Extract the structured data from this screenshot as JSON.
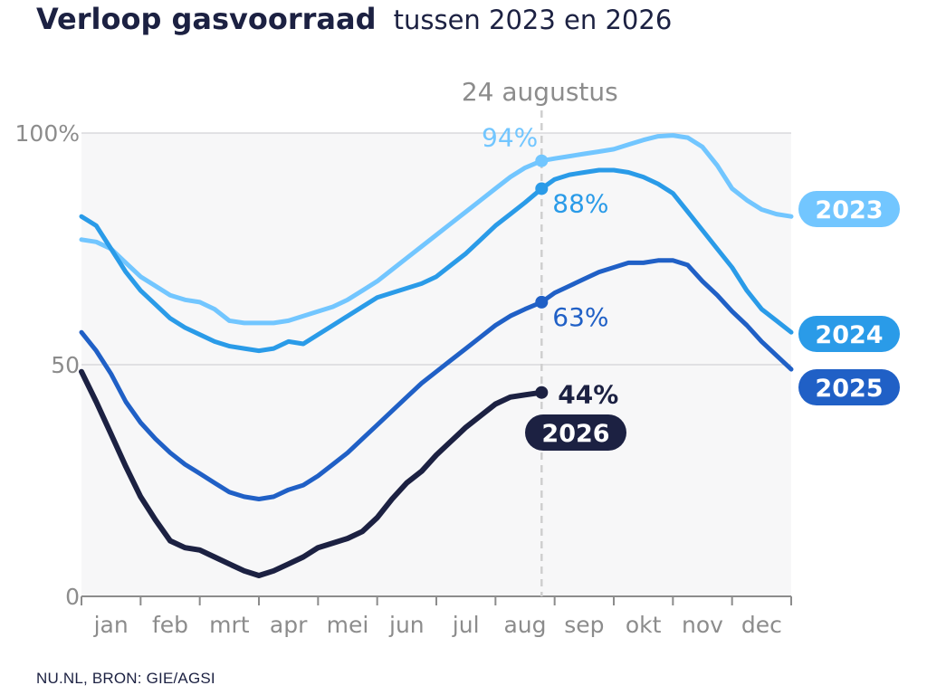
{
  "header": {
    "title": "Verloop gasvoorraad",
    "subtitle": "tussen 2023 en 2026"
  },
  "footer": {
    "source": "NU.NL, BRON: GIE/AGSI"
  },
  "chart_data": {
    "type": "line",
    "title": "Verloop gasvoorraad",
    "subtitle": "tussen 2023 en 2026",
    "xlabel": "",
    "ylabel": "",
    "ylim": [
      0,
      100
    ],
    "y_ticks": [
      "0",
      "50",
      "100%"
    ],
    "y_tick_values": [
      0,
      50,
      100
    ],
    "months": [
      "jan",
      "feb",
      "mrt",
      "apr",
      "mei",
      "jun",
      "jul",
      "aug",
      "sep",
      "okt",
      "nov",
      "dec"
    ],
    "marker": {
      "label": "24 augustus",
      "x": 7.78
    },
    "grid": "horizontal",
    "background": "#f7f7f8",
    "x_unit": "month (0 = 1 jan, 12 = 31 dec)",
    "series": [
      {
        "name": "2023",
        "color": "#72c6ff",
        "marker_value": "94%",
        "x": [
          0,
          0.25,
          0.5,
          0.75,
          1.0,
          1.25,
          1.5,
          1.75,
          2.0,
          2.25,
          2.5,
          2.75,
          3.0,
          3.25,
          3.5,
          3.75,
          4.0,
          4.25,
          4.5,
          4.75,
          5.0,
          5.25,
          5.5,
          5.75,
          6.0,
          6.25,
          6.5,
          6.75,
          7.0,
          7.25,
          7.5,
          7.78,
          8.0,
          8.25,
          8.5,
          8.75,
          9.0,
          9.25,
          9.5,
          9.75,
          10.0,
          10.25,
          10.5,
          10.75,
          11.0,
          11.25,
          11.5,
          11.75,
          12.0
        ],
        "values": [
          77,
          76.5,
          75,
          72,
          69,
          67,
          65,
          64,
          63.5,
          62,
          59.5,
          59,
          59,
          59,
          59.5,
          60.5,
          61.5,
          62.5,
          64,
          66,
          68,
          70.5,
          73,
          75.5,
          78,
          80.5,
          83,
          85.5,
          88,
          90.5,
          92.5,
          94,
          94.5,
          95,
          95.5,
          96,
          96.5,
          97.5,
          98.5,
          99.3,
          99.5,
          99,
          97,
          93,
          88,
          85.5,
          83.5,
          82.5,
          82
        ]
      },
      {
        "name": "2024",
        "color": "#2a9be8",
        "marker_value": "88%",
        "x": [
          0,
          0.25,
          0.5,
          0.75,
          1.0,
          1.25,
          1.5,
          1.75,
          2.0,
          2.25,
          2.5,
          2.75,
          3.0,
          3.25,
          3.5,
          3.75,
          4.0,
          4.25,
          4.5,
          4.75,
          5.0,
          5.25,
          5.5,
          5.75,
          6.0,
          6.25,
          6.5,
          6.75,
          7.0,
          7.25,
          7.5,
          7.78,
          8.0,
          8.25,
          8.5,
          8.75,
          9.0,
          9.25,
          9.5,
          9.75,
          10.0,
          10.25,
          10.5,
          10.75,
          11.0,
          11.25,
          11.5,
          11.75,
          12.0
        ],
        "values": [
          82,
          80,
          75,
          70,
          66,
          63,
          60,
          58,
          56.5,
          55,
          54,
          53.5,
          53,
          53.5,
          55,
          54.5,
          56.5,
          58.5,
          60.5,
          62.5,
          64.5,
          65.5,
          66.5,
          67.5,
          69,
          71.5,
          74,
          77,
          80,
          82.5,
          85,
          88,
          90,
          91,
          91.5,
          92,
          92,
          91.5,
          90.5,
          89,
          87,
          83,
          79,
          75,
          71,
          66,
          62,
          59.5,
          57
        ]
      },
      {
        "name": "2025",
        "color": "#2060c6",
        "marker_value": "63%",
        "x": [
          0,
          0.25,
          0.5,
          0.75,
          1.0,
          1.25,
          1.5,
          1.75,
          2.0,
          2.25,
          2.5,
          2.75,
          3.0,
          3.25,
          3.5,
          3.75,
          4.0,
          4.25,
          4.5,
          4.75,
          5.0,
          5.25,
          5.5,
          5.75,
          6.0,
          6.25,
          6.5,
          6.75,
          7.0,
          7.25,
          7.5,
          7.78,
          8.0,
          8.25,
          8.5,
          8.75,
          9.0,
          9.25,
          9.5,
          9.75,
          10.0,
          10.25,
          10.5,
          10.75,
          11.0,
          11.25,
          11.5,
          11.75,
          12.0
        ],
        "values": [
          57,
          53,
          48,
          42,
          37.5,
          34,
          31,
          28.5,
          26.5,
          24.5,
          22.5,
          21.5,
          21,
          21.5,
          23,
          24,
          26,
          28.5,
          31,
          34,
          37,
          40,
          43,
          46,
          48.5,
          51,
          53.5,
          56,
          58.5,
          60.5,
          62,
          63.5,
          65.5,
          67,
          68.5,
          70,
          71,
          72,
          72,
          72.5,
          72.5,
          71.5,
          68,
          65,
          61.5,
          58.5,
          55,
          52,
          49
        ]
      },
      {
        "name": "2026",
        "color": "#1c2142",
        "marker_value": "44%",
        "x": [
          0,
          0.25,
          0.5,
          0.75,
          1.0,
          1.25,
          1.5,
          1.75,
          2.0,
          2.25,
          2.5,
          2.75,
          3.0,
          3.25,
          3.5,
          3.75,
          4.0,
          4.25,
          4.5,
          4.75,
          5.0,
          5.25,
          5.5,
          5.75,
          6.0,
          6.25,
          6.5,
          6.75,
          7.0,
          7.25,
          7.5,
          7.78
        ],
        "values": [
          48.5,
          42,
          35,
          28,
          21.5,
          16.5,
          12,
          10.5,
          10,
          8.5,
          7,
          5.5,
          4.5,
          5.5,
          7,
          8.5,
          10.5,
          11.5,
          12.5,
          14,
          17,
          21,
          24.5,
          27,
          30.5,
          33.5,
          36.5,
          39,
          41.5,
          43,
          43.5,
          44
        ]
      }
    ]
  }
}
